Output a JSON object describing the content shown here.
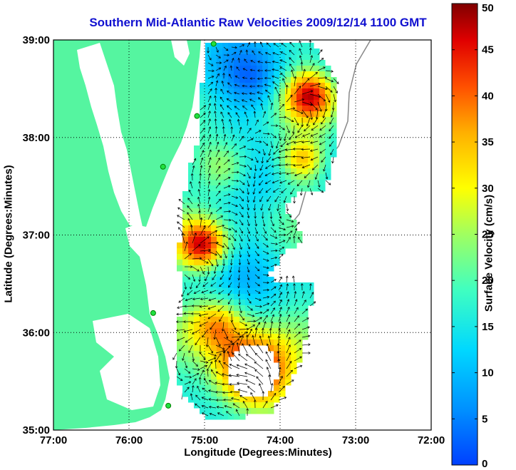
{
  "title": "Southern Mid-Atlantic Raw Velocities 2009/12/14 1100 GMT",
  "x_axis": {
    "label": "Longitude (Degrees:Minutes)",
    "ticks": [
      "77:00",
      "76:00",
      "75:00",
      "74:00",
      "73:00",
      "72:00"
    ]
  },
  "y_axis": {
    "label": "Latitude (Degrees:Minutes)",
    "ticks": [
      "39:00",
      "38:00",
      "37:00",
      "36:00",
      "35:00"
    ]
  },
  "colorbar": {
    "label": "Surface Velocity (cm/s)",
    "ticks": [
      "0",
      "5",
      "10",
      "15",
      "20",
      "25",
      "30",
      "35",
      "40",
      "45",
      "50"
    ],
    "min": 0,
    "max": 50
  },
  "colors": {
    "land": "#55f5a0",
    "title": "#1010d0",
    "grid": "#000000"
  },
  "map": {
    "lon_range": [
      -77,
      -72
    ],
    "lat_range": [
      35,
      39
    ],
    "grid": "dotted"
  },
  "stations": [
    {
      "lon": -74.88,
      "lat": 38.96
    },
    {
      "lon": -75.1,
      "lat": 38.22
    },
    {
      "lon": -75.55,
      "lat": 37.7
    },
    {
      "lon": -75.68,
      "lat": 36.2
    },
    {
      "lon": -75.48,
      "lat": 35.25
    }
  ]
}
